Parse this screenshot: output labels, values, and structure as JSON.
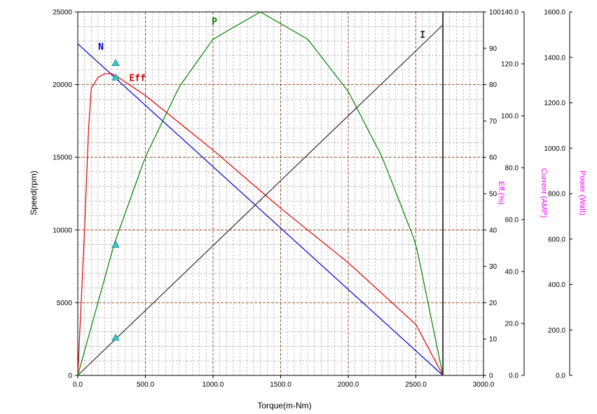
{
  "chart_data": {
    "type": "line",
    "xlabel": "Torque(m-Nm)",
    "xlim": [
      0,
      3000
    ],
    "x_ticks": [
      "0.0",
      "500.0",
      "1000.0",
      "1500.0",
      "2000.0",
      "2500.0",
      "3000.0"
    ],
    "axes": {
      "speed": {
        "label": "Speed(rpm)",
        "lim": [
          0,
          25000
        ],
        "ticks": [
          "0",
          "5000",
          "10000",
          "15000",
          "20000",
          "25000"
        ]
      },
      "efficiency": {
        "label": "Eff.(%)",
        "lim": [
          0,
          100
        ],
        "ticks": [
          "0",
          "10",
          "20",
          "30",
          "40",
          "50",
          "60",
          "70",
          "80",
          "90",
          "100"
        ]
      },
      "current": {
        "label": "Current (AMP)",
        "lim": [
          0,
          140
        ],
        "ticks": [
          "0.0",
          "20.0",
          "40.0",
          "60.0",
          "80.0",
          "100.0",
          "120.0",
          "140.0"
        ]
      },
      "power": {
        "label": "Power (Watt)",
        "lim": [
          0,
          1600
        ],
        "ticks": [
          "0.0",
          "200.0",
          "400.0",
          "600.0",
          "800.0",
          "1000.0",
          "1200.0",
          "1400.0",
          "1600.0"
        ]
      }
    },
    "grid": true,
    "series": [
      {
        "name": "N",
        "axis": "speed",
        "color": "#0000cc",
        "x": [
          0,
          2700
        ],
        "y": [
          22800,
          0
        ]
      },
      {
        "name": "Eff",
        "axis": "efficiency",
        "color": "#dd0000",
        "x": [
          0,
          50,
          80,
          100,
          150,
          200,
          250,
          300,
          500,
          800,
          1000,
          1500,
          2000,
          2500,
          2700
        ],
        "y": [
          0,
          40,
          68,
          79,
          82,
          83,
          83,
          82,
          77,
          68,
          62,
          46,
          31,
          14,
          0
        ]
      },
      {
        "name": "P",
        "axis": "power",
        "color": "#008000",
        "x": [
          0,
          270,
          500,
          750,
          1000,
          1350,
          1700,
          2000,
          2250,
          2500,
          2700
        ],
        "y": [
          0,
          580,
          962,
          1270,
          1480,
          1600,
          1480,
          1250,
          962,
          580,
          0
        ]
      },
      {
        "name": "I",
        "axis": "current",
        "color": "#303030",
        "x": [
          0,
          2700
        ],
        "y": [
          0,
          135
        ]
      }
    ],
    "markers": {
      "color": "#33cccc",
      "x": 280,
      "points": [
        {
          "axis": "speed",
          "y": 2600
        },
        {
          "axis": "speed",
          "y": 9000
        },
        {
          "axis": "speed",
          "y": 20500
        },
        {
          "axis": "speed",
          "y": 21500
        }
      ]
    },
    "vertical_line_x": 2700
  }
}
